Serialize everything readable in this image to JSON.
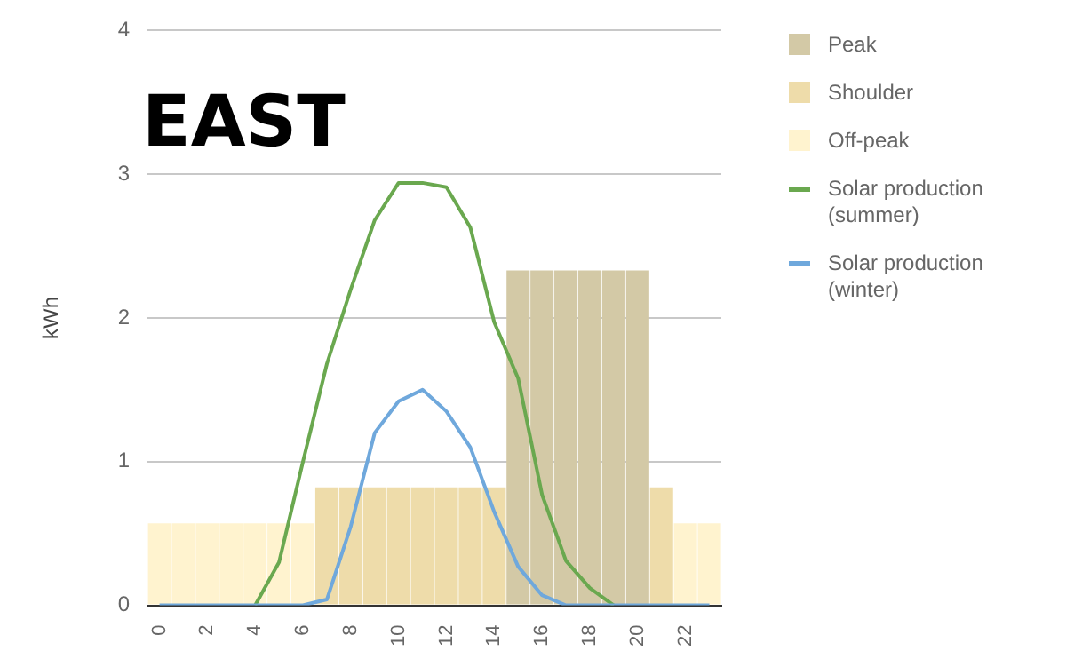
{
  "chart_data": {
    "type": "bar",
    "title": "EAST",
    "ylabel": "kWh",
    "categories": [
      "0",
      null,
      "2",
      null,
      "4",
      null,
      "6",
      null,
      "8",
      null,
      "10",
      null,
      "12",
      null,
      "14",
      null,
      "16",
      null,
      "18",
      null,
      "20",
      null,
      "22",
      null
    ],
    "stacked": true,
    "series": [
      {
        "name": "Peak",
        "color": "#d3c9a6",
        "values": [
          null,
          null,
          null,
          null,
          null,
          null,
          null,
          null,
          null,
          null,
          null,
          null,
          null,
          null,
          null,
          2.33,
          2.33,
          2.33,
          2.33,
          2.33,
          2.33,
          null,
          null,
          null
        ]
      },
      {
        "name": "Shoulder",
        "color": "#eedcaa",
        "values": [
          null,
          null,
          null,
          null,
          null,
          null,
          null,
          0.82,
          0.82,
          0.82,
          0.82,
          0.82,
          0.82,
          0.82,
          0.82,
          null,
          null,
          null,
          null,
          null,
          null,
          0.82,
          null,
          null
        ]
      },
      {
        "name": "Off-peak",
        "color": "#fff3cf",
        "values": [
          0.57,
          0.57,
          0.57,
          0.57,
          0.57,
          0.57,
          0.57,
          null,
          null,
          null,
          null,
          null,
          null,
          null,
          null,
          null,
          null,
          null,
          null,
          null,
          null,
          null,
          0.57,
          0.57
        ]
      },
      {
        "name": "Solar production (summer)",
        "type": "line",
        "color": "#6aa84f",
        "values": [
          null,
          null,
          null,
          null,
          0,
          0.3,
          1.0,
          1.68,
          2.2,
          2.68,
          2.94,
          2.94,
          2.91,
          2.63,
          1.97,
          1.58,
          0.77,
          0.31,
          0.12,
          0,
          null,
          null,
          null,
          null
        ]
      },
      {
        "name": "Solar production (winter)",
        "type": "line",
        "color": "#6fa8dc",
        "values": [
          0,
          0,
          0,
          0,
          0,
          0,
          0,
          0.04,
          0.55,
          1.2,
          1.42,
          1.5,
          1.35,
          1.1,
          0.65,
          0.27,
          0.07,
          0,
          0,
          0,
          0,
          0,
          0,
          0
        ]
      }
    ],
    "ylim": [
      0,
      4
    ],
    "yticks": [
      0,
      1,
      2,
      3,
      4
    ],
    "grid": "y",
    "legend": "right",
    "marker": "none"
  }
}
